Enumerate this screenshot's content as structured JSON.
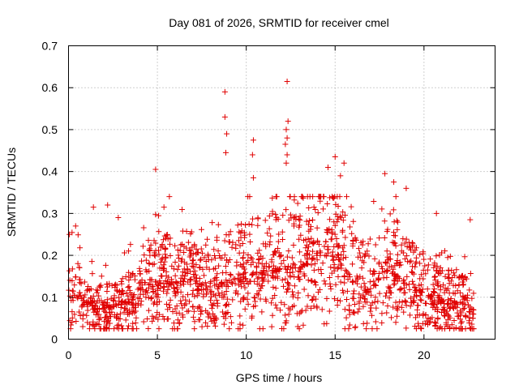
{
  "chart_data": {
    "type": "scatter",
    "title": "Day 081 of 2026, SRMTID for receiver cmel",
    "xlabel": "GPS time / hours",
    "ylabel": "SRMTID / TECUs",
    "xlim": [
      0,
      24
    ],
    "ylim": [
      0,
      0.7
    ],
    "xticks": [
      {
        "value": 0,
        "label": "0"
      },
      {
        "value": 5,
        "label": "5"
      },
      {
        "value": 10,
        "label": "10"
      },
      {
        "value": 15,
        "label": "15"
      },
      {
        "value": 20,
        "label": "20"
      }
    ],
    "yticks": [
      {
        "value": 0,
        "label": "0"
      },
      {
        "value": 0.1,
        "label": "0.1"
      },
      {
        "value": 0.2,
        "label": "0.2"
      },
      {
        "value": 0.3,
        "label": "0.3"
      },
      {
        "value": 0.4,
        "label": "0.4"
      },
      {
        "value": 0.5,
        "label": "0.5"
      },
      {
        "value": 0.6,
        "label": "0.6"
      },
      {
        "value": 0.7,
        "label": "0.7"
      }
    ],
    "grid": true,
    "marker": "+",
    "series_color": "#e00000",
    "outliers": [
      {
        "x": 0.05,
        "y": 0.25
      },
      {
        "x": 0.4,
        "y": 0.27
      },
      {
        "x": 1.4,
        "y": 0.315
      },
      {
        "x": 2.2,
        "y": 0.32
      },
      {
        "x": 2.8,
        "y": 0.29
      },
      {
        "x": 4.9,
        "y": 0.405
      },
      {
        "x": 8.8,
        "y": 0.59
      },
      {
        "x": 8.8,
        "y": 0.53
      },
      {
        "x": 8.9,
        "y": 0.49
      },
      {
        "x": 8.85,
        "y": 0.445
      },
      {
        "x": 10.4,
        "y": 0.475
      },
      {
        "x": 10.35,
        "y": 0.44
      },
      {
        "x": 10.4,
        "y": 0.385
      },
      {
        "x": 12.3,
        "y": 0.615
      },
      {
        "x": 12.35,
        "y": 0.52
      },
      {
        "x": 12.25,
        "y": 0.5
      },
      {
        "x": 12.3,
        "y": 0.48
      },
      {
        "x": 12.2,
        "y": 0.465
      },
      {
        "x": 12.3,
        "y": 0.44
      },
      {
        "x": 12.25,
        "y": 0.42
      },
      {
        "x": 14.6,
        "y": 0.41
      },
      {
        "x": 15.0,
        "y": 0.435
      },
      {
        "x": 15.5,
        "y": 0.42
      },
      {
        "x": 15.3,
        "y": 0.39
      },
      {
        "x": 17.8,
        "y": 0.395
      },
      {
        "x": 18.3,
        "y": 0.375
      },
      {
        "x": 19.0,
        "y": 0.36
      },
      {
        "x": 20.7,
        "y": 0.3
      },
      {
        "x": 22.6,
        "y": 0.285
      },
      {
        "x": 12.9,
        "y": 0.03
      },
      {
        "x": 0.8,
        "y": 0.03
      }
    ],
    "profile": [
      {
        "x": 0.0,
        "y": 0.1
      },
      {
        "x": 0.5,
        "y": 0.11
      },
      {
        "x": 1.0,
        "y": 0.07
      },
      {
        "x": 2.0,
        "y": 0.075
      },
      {
        "x": 3.0,
        "y": 0.08
      },
      {
        "x": 4.0,
        "y": 0.1
      },
      {
        "x": 5.0,
        "y": 0.14
      },
      {
        "x": 6.0,
        "y": 0.135
      },
      {
        "x": 7.0,
        "y": 0.14
      },
      {
        "x": 8.0,
        "y": 0.12
      },
      {
        "x": 9.0,
        "y": 0.14
      },
      {
        "x": 10.0,
        "y": 0.15
      },
      {
        "x": 11.0,
        "y": 0.16
      },
      {
        "x": 12.0,
        "y": 0.165
      },
      {
        "x": 13.0,
        "y": 0.17
      },
      {
        "x": 14.0,
        "y": 0.2
      },
      {
        "x": 15.0,
        "y": 0.2
      },
      {
        "x": 16.0,
        "y": 0.14
      },
      {
        "x": 17.0,
        "y": 0.12
      },
      {
        "x": 18.0,
        "y": 0.17
      },
      {
        "x": 19.0,
        "y": 0.13
      },
      {
        "x": 20.0,
        "y": 0.11
      },
      {
        "x": 21.0,
        "y": 0.09
      },
      {
        "x": 22.0,
        "y": 0.085
      },
      {
        "x": 22.8,
        "y": 0.07
      }
    ],
    "bulk": {
      "count": 1800,
      "x_start": 0.0,
      "x_end": 22.8,
      "spread_fraction": 0.5,
      "seed": 81
    }
  }
}
